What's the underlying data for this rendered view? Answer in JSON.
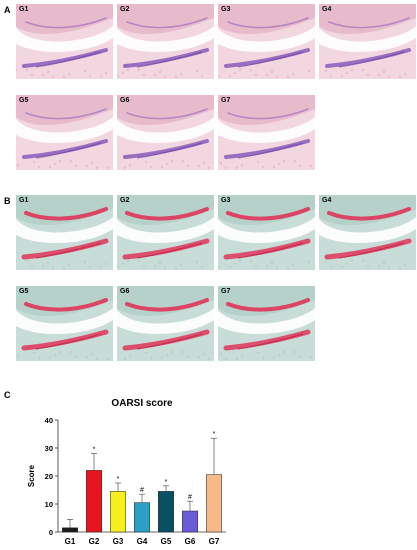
{
  "panels": [
    {
      "letter": "A",
      "stain": "he",
      "colors": {
        "bg": "#f2d6e0",
        "mid": "#e7b8ca",
        "band": "#8a5bb8",
        "dark": "#6e3f9e"
      },
      "tiles": [
        {
          "label": "G1"
        },
        {
          "label": "G2"
        },
        {
          "label": "G3"
        },
        {
          "label": "G4"
        },
        {
          "label": "G5"
        },
        {
          "label": "G6"
        },
        {
          "label": "G7"
        }
      ]
    },
    {
      "letter": "B",
      "stain": "safranin",
      "colors": {
        "bg": "#c9ddd8",
        "mid": "#b4cfc8",
        "band": "#e0345a",
        "dark": "#b81d45"
      },
      "tiles": [
        {
          "label": "G1"
        },
        {
          "label": "G2"
        },
        {
          "label": "G3"
        },
        {
          "label": "G4"
        },
        {
          "label": "G5"
        },
        {
          "label": "G6"
        },
        {
          "label": "G7"
        }
      ]
    }
  ],
  "chart_panel_letter": "C",
  "chart_data": {
    "type": "bar",
    "title": "OARSI score",
    "xlabel": "",
    "ylabel": "Score",
    "ylim": [
      0,
      40
    ],
    "yticks": [
      0,
      10,
      20,
      30,
      40
    ],
    "categories": [
      "G1",
      "G2",
      "G3",
      "G4",
      "G5",
      "G6",
      "G7"
    ],
    "values": [
      1.5,
      22,
      14.5,
      10.5,
      14.5,
      7.5,
      20.5
    ],
    "errors": [
      3,
      6,
      3,
      3,
      2,
      3.5,
      13
    ],
    "annotations": [
      "",
      "*",
      "*",
      "#",
      "*",
      "#",
      "*"
    ],
    "colors": [
      "#1a1a1a",
      "#e8141e",
      "#f5f01e",
      "#2ba0c4",
      "#0b4f63",
      "#6b5bd9",
      "#f7b98a"
    ],
    "grid": false,
    "legend": "none"
  }
}
